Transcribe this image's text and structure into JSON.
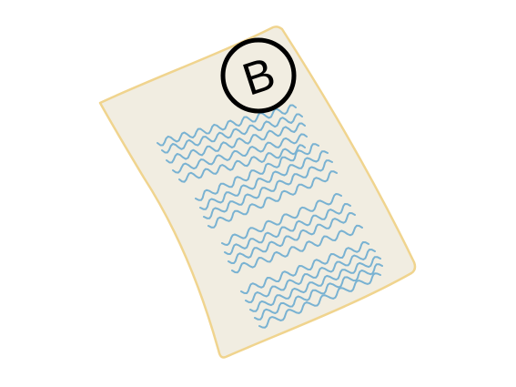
{
  "illustration": {
    "subject": "graded-paper-clipart",
    "grade": "B",
    "colors": {
      "background": "#ffffff",
      "paper_fill": "#f1ede1",
      "paper_border": "#f0d48e",
      "scribble": "#79b2d2",
      "grade_ink": "#000000"
    }
  }
}
